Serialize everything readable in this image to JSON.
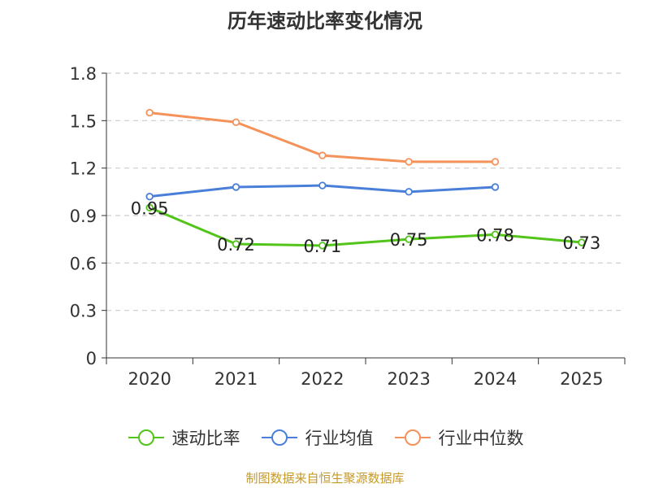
{
  "chart_data": {
    "type": "line",
    "title": "历年速动比率变化情况",
    "categories": [
      "2020",
      "2021",
      "2022",
      "2023",
      "2024",
      "2025"
    ],
    "yticks": [
      "0",
      "0.3",
      "0.6",
      "0.9",
      "1.2",
      "1.5",
      "1.8"
    ],
    "ylim": [
      0,
      1.8
    ],
    "grid": true,
    "legend_position": "bottom",
    "series": [
      {
        "name": "速动比率",
        "color": "#52c41a",
        "values": [
          0.95,
          0.72,
          0.71,
          0.75,
          0.78,
          0.73
        ],
        "labels": [
          "0.95",
          "0.72",
          "0.71",
          "0.75",
          "0.78",
          "0.73"
        ]
      },
      {
        "name": "行业均值",
        "color": "#4a7fd9",
        "values": [
          1.02,
          1.08,
          1.09,
          1.05,
          1.08,
          null
        ]
      },
      {
        "name": "行业中位数",
        "color": "#f5925a",
        "values": [
          1.55,
          1.49,
          1.28,
          1.24,
          1.24,
          null
        ]
      }
    ]
  },
  "source_note": "制图数据来自恒生聚源数据库"
}
